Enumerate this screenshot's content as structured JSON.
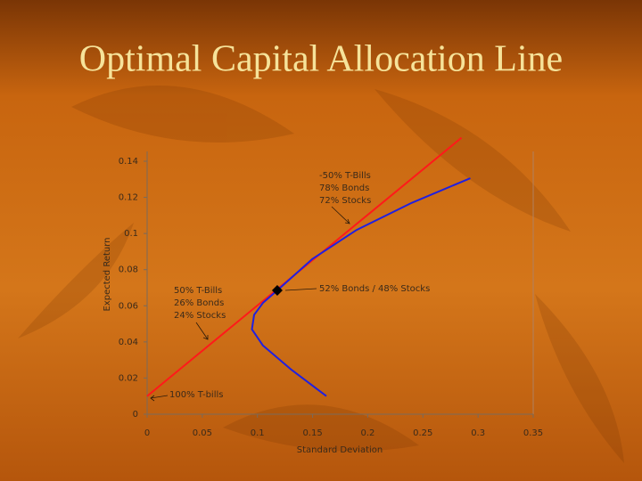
{
  "chart_data": {
    "type": "line",
    "title": "Optimal Capital Allocation Line",
    "xlabel": "Standard Deviation",
    "ylabel": "Expected Return",
    "xlim": [
      0,
      0.35
    ],
    "ylim": [
      0,
      0.14
    ],
    "xticks": [
      0,
      0.05,
      0.1,
      0.15,
      0.2,
      0.25,
      0.3,
      0.35
    ],
    "yticks": [
      0,
      0.02,
      0.04,
      0.06,
      0.08,
      0.1,
      0.12,
      0.14
    ],
    "series": [
      {
        "color": "#ff1a1a",
        "x": [
          0,
          0.285
        ],
        "values": [
          0.01,
          0.153
        ]
      },
      {
        "color": "#2020e0",
        "x": [
          0.1625,
          0.13,
          0.105,
          0.095,
          0.097,
          0.105,
          0.118,
          0.15,
          0.19,
          0.24,
          0.293
        ],
        "values": [
          0.01,
          0.025,
          0.038,
          0.047,
          0.055,
          0.0616,
          0.0685,
          0.086,
          0.102,
          0.117,
          0.1306
        ]
      }
    ],
    "tangent_point": {
      "x": 0.118,
      "y": 0.0685,
      "color": "#000000"
    },
    "annotations": [
      {
        "lines": [
          "-50% T-Bills",
          "78% Bonds",
          "72% Stocks"
        ]
      },
      {
        "lines": [
          "52% Bonds / 48% Stocks"
        ]
      },
      {
        "lines": [
          "50% T-Bills",
          "26% Bonds",
          "24% Stocks"
        ]
      },
      {
        "lines": [
          "100% T-bills"
        ]
      }
    ]
  }
}
